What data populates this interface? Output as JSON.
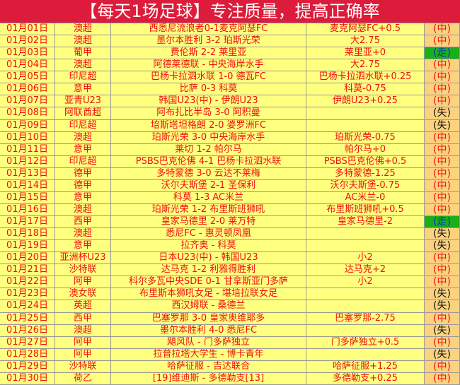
{
  "title": "【每天1场足球】专注质量，提高正确率",
  "colors": {
    "header": "#dc1c3a",
    "row": "#ffff80",
    "result": "#fbd27e",
    "push": "#1aae1a",
    "text": "#f01010"
  },
  "rows": [
    [
      "01月01日",
      "澳超",
      "西悉尼流浪者0-1麦克阿瑟FC",
      "麦克阿瑟FC+0.5",
      "(中)"
    ],
    [
      "01月02日",
      "澳超",
      "墨尔本胜利 3-2 珀斯光荣",
      "大2.75",
      "(中)"
    ],
    [
      "01月03日",
      "葡甲",
      "费伦斯 2-2 莱里亚",
      "莱里亚+0",
      "(走)"
    ],
    [
      "01月04日",
      "澳超",
      "阿德莱德联 - 中央海岸水手",
      "大2.75",
      "(中)"
    ],
    [
      "01月05日",
      "印尼超",
      "巴杨卡拉泗水联 1-0 德瓦FC",
      "巴杨卡拉泗水联+0.25",
      "(中)"
    ],
    [
      "01月06日",
      "意甲",
      "比萨 0-3 科莫",
      "科莫-0.75",
      "(中)"
    ],
    [
      "01月07日",
      "亚青U23",
      "韩国U23(中) - 伊朗U23",
      "伊朗U23+0.25",
      "(中)"
    ],
    [
      "01月08日",
      "阿联酋超",
      "阿布扎比半岛 3-0 阿积曼",
      "",
      "(失)"
    ],
    [
      "01月09日",
      "印尼超",
      "培斯塔坦格朗 2-0 婆罗洲FC",
      "",
      "(失)"
    ],
    [
      "01月10日",
      "澳超",
      "珀斯光荣 3-0 中央海岸水手",
      "珀斯光荣-0.75",
      "(中)"
    ],
    [
      "01月11日",
      "意甲",
      "莱切 1-2 帕尔马",
      "帕尔马+0",
      "(中)"
    ],
    [
      "01月12日",
      "印尼超",
      "PSBS巴克伦佛 4-1 巴杨卡拉泗水联",
      "PSBS巴克伦佛+0.5",
      "(中)"
    ],
    [
      "01月13日",
      "德甲",
      "多特蒙德 3-0 云达不莱梅",
      "多特蒙德-1.25",
      "(中)"
    ],
    [
      "01月14日",
      "德甲",
      "沃尔夫斯堡 2-1 圣保利",
      "沃尔夫斯堡-0.75",
      "(中)"
    ],
    [
      "01月15日",
      "意甲",
      "科莫 1-3 AC米兰",
      "AC米兰-0",
      "(中)"
    ],
    [
      "01月16日",
      "澳超",
      "珀斯光荣 1-2 布里斯班狮吼",
      "布里斯班狮吼+0.5",
      "(中)"
    ],
    [
      "01月17日",
      "西甲",
      "皇家马德里 2-0 莱万特",
      "皇家马德里-2",
      "(走)"
    ],
    [
      "01月18日",
      "澳超",
      "悉尼FC - 惠灵顿凤凰",
      "",
      "(失)"
    ],
    [
      "01月19日",
      "意甲",
      "拉齐奥 - 科莫",
      "",
      "(失)"
    ],
    [
      "01月20日",
      "亚洲杯U23",
      "日本U23(中) - 韩国U23",
      "小2",
      "(中)"
    ],
    [
      "01月21日",
      "沙特联",
      "达马克 1-2 利雅得胜利",
      "达马克+2",
      "(中)"
    ],
    [
      "01月22日",
      "阿甲",
      "科尔多瓦中央SDE 0-1 甘拿斯亚门多萨",
      "小2",
      "(中)"
    ],
    [
      "01月23日",
      "澳女联",
      "布里斯本狮吼女足 - 堪培拉联女足",
      "",
      "(失)"
    ],
    [
      "01月24日",
      "英超",
      "西汉姆联 - 桑德兰",
      "",
      "(失)"
    ],
    [
      "01月25日",
      "西甲",
      "巴塞罗那 3-0 皇家奥维耶多",
      "巴塞罗那-2.75",
      "(中)"
    ],
    [
      "01月26日",
      "澳超",
      "墨尔本胜利 4-0 悉尼FC",
      "",
      "(失)"
    ],
    [
      "01月27日",
      "阿甲",
      "飓风队 - 门多萨独立",
      "门多萨独立+0.5",
      "(中)"
    ],
    [
      "01月28日",
      "阿甲",
      "拉普拉塔大学生 - 博卡青年",
      "",
      "(失)"
    ],
    [
      "01月29日",
      "沙特联",
      "哈萨征服 - 吉达联合",
      "哈萨征服+1.25",
      "(中)"
    ],
    [
      "01月30日",
      "荷乙",
      "[19]维迪斯 - 多德勒支[13]",
      "多德勒支+0.25",
      "(中)"
    ]
  ]
}
